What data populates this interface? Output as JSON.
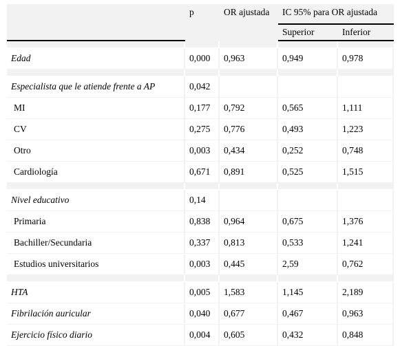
{
  "header": {
    "p": "p",
    "or": "OR ajustada",
    "ic": "IC 95% para OR ajustada",
    "superior": "Superior",
    "inferior": "Inferior"
  },
  "rows": [
    {
      "label": "Edad",
      "p": "0,000",
      "or": "0,963",
      "sup": "0,949",
      "inf": "0,978"
    },
    {
      "label": "Especialista que le atiende frente a AP",
      "p": "0,042",
      "or": "",
      "sup": "",
      "inf": ""
    },
    {
      "label": "MI",
      "p": "0,177",
      "or": "0,792",
      "sup": "0,565",
      "inf": "1,111"
    },
    {
      "label": "CV",
      "p": "0,275",
      "or": "0,776",
      "sup": "0,493",
      "inf": "1,223"
    },
    {
      "label": "Otro",
      "p": "0,003",
      "or": "0,434",
      "sup": "0,252",
      "inf": "0,748"
    },
    {
      "label": "Cardiología",
      "p": "0,671",
      "or": "0,891",
      "sup": "0,525",
      "inf": "1,515"
    },
    {
      "label": "Nivel educativo",
      "p": "0,14",
      "or": "",
      "sup": "",
      "inf": ""
    },
    {
      "label": "Primaria",
      "p": "0,838",
      "or": "0,964",
      "sup": "0,675",
      "inf": "1,376"
    },
    {
      "label": "Bachiller/Secundaria",
      "p": "0,337",
      "or": "0,813",
      "sup": "0,533",
      "inf": "1,241"
    },
    {
      "label": "Estudios universitarios",
      "p": "0,003",
      "or": "0,445",
      "sup": "2,59",
      "inf": "0,762"
    },
    {
      "label": "HTA",
      "p": "0,005",
      "or": "1,583",
      "sup": "1,145",
      "inf": "2,189"
    },
    {
      "label": "Fibrilación auricular",
      "p": "0,040",
      "or": "0,677",
      "sup": "0,467",
      "inf": "0,963"
    },
    {
      "label": "Ejercicio físico diario",
      "p": "0,004",
      "or": "0,605",
      "sup": "0,432",
      "inf": "0,848"
    }
  ]
}
